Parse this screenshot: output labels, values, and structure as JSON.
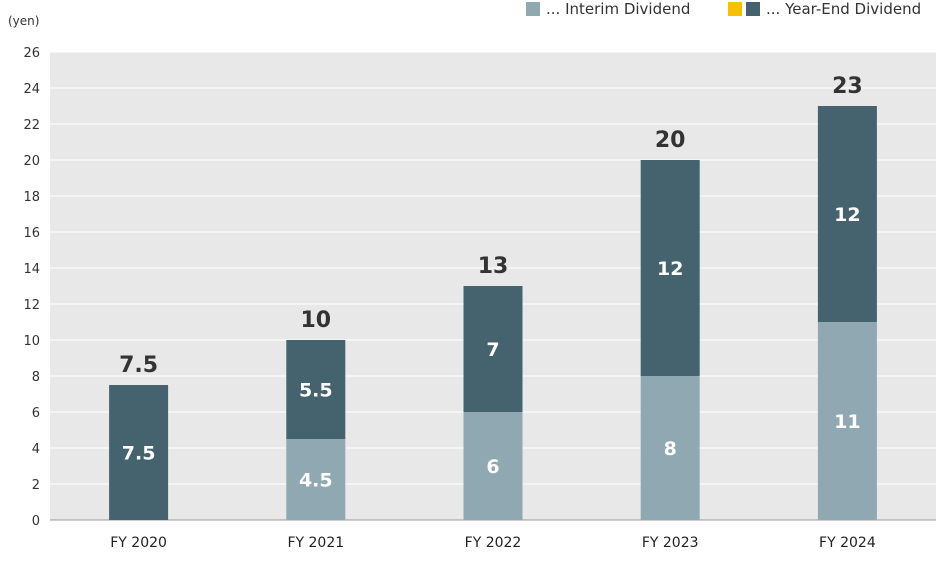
{
  "chart_data": {
    "type": "bar",
    "stacked": true,
    "ylabel": "(yen)",
    "ylim": [
      0,
      26
    ],
    "ytick_step": 2,
    "grid": true,
    "legend_position": "top-right",
    "categories": [
      "FY 2020",
      "FY 2021",
      "FY 2022",
      "FY 2023",
      "FY 2024"
    ],
    "series": [
      {
        "name": "Interim Dividend",
        "color": "#8fa8b1",
        "values": [
          0,
          4.5,
          6,
          8,
          11
        ],
        "labels": [
          "",
          "4.5",
          "6",
          "8",
          "11"
        ]
      },
      {
        "name": "Year-End Dividend",
        "color": "#44636f",
        "values": [
          7.5,
          5.5,
          7,
          12,
          12
        ],
        "labels": [
          "7.5",
          "5.5",
          "7",
          "12",
          "12"
        ]
      }
    ],
    "totals": [
      "7.5",
      "10",
      "13",
      "20",
      "23"
    ],
    "legend": {
      "interim_text": "... Interim Dividend",
      "yearend_text": "... Year-End Dividend",
      "yearend_extra_swatch_color": "#f5c000"
    }
  }
}
